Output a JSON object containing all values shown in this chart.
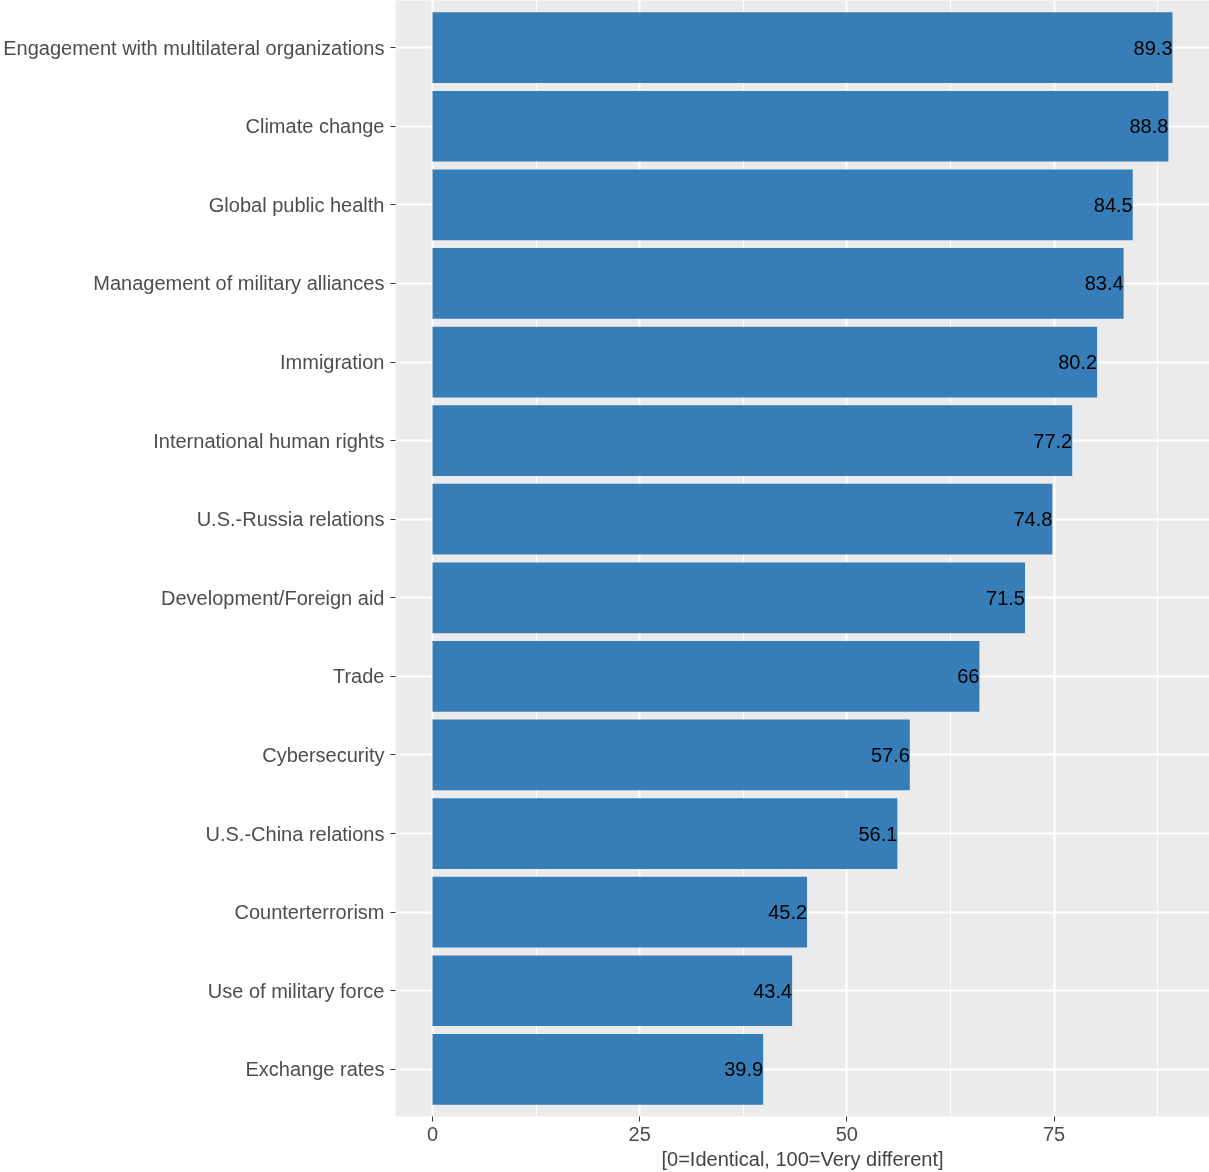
{
  "chart_data": {
    "type": "bar",
    "orientation": "horizontal",
    "xlabel": "[0=Identical, 100=Very different]",
    "categories": [
      "Engagement with multilateral organizations",
      "Climate change",
      "Global public health",
      "Management of military alliances",
      "Immigration",
      "International human rights",
      "U.S.-Russia relations",
      "Development/Foreign aid",
      "Trade",
      "Cybersecurity",
      "U.S.-China relations",
      "Counterterrorism",
      "Use of military force",
      "Exchange rates"
    ],
    "values": [
      89.3,
      88.8,
      84.5,
      83.4,
      80.2,
      77.2,
      74.8,
      71.5,
      66,
      57.6,
      56.1,
      45.2,
      43.4,
      39.9
    ],
    "color": "#377eb8",
    "xlim": [
      -4.465,
      93.765
    ],
    "xticks": [
      0,
      25,
      50,
      75
    ],
    "grid": true,
    "data_labels": true
  }
}
